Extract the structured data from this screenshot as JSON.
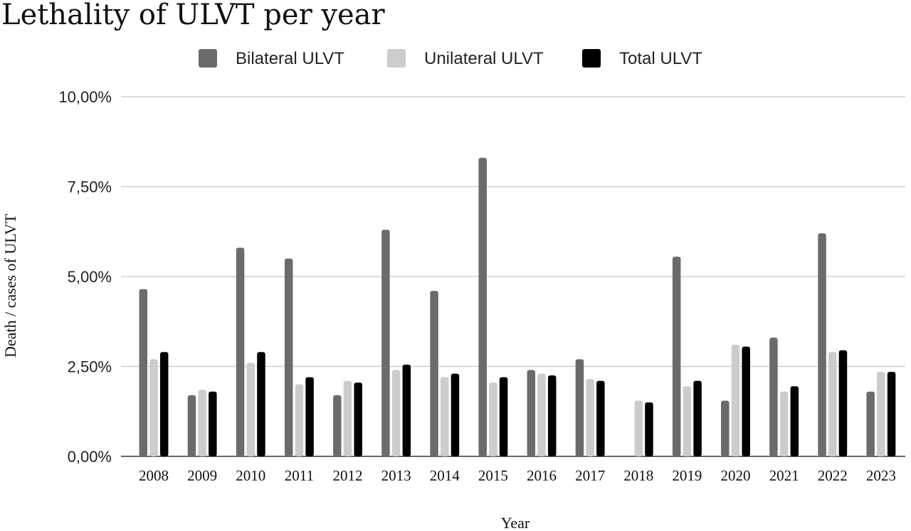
{
  "chart_data": {
    "type": "bar",
    "title": "Lethality of ULVT per year",
    "xlabel": "Year",
    "ylabel": "Death / cases of ULVT",
    "ylim": [
      0,
      10
    ],
    "yticks": [
      "0,00%",
      "2,50%",
      "5,00%",
      "7,50%",
      "10,00%"
    ],
    "ytick_values": [
      0,
      2.5,
      5,
      7.5,
      10
    ],
    "grid": true,
    "legend_position": "top-center",
    "categories": [
      "2008",
      "2009",
      "2010",
      "2011",
      "2012",
      "2013",
      "2014",
      "2015",
      "2016",
      "2017",
      "2018",
      "2019",
      "2020",
      "2021",
      "2022",
      "2023"
    ],
    "series": [
      {
        "name": "Bilateral ULVT",
        "color": "#6b6b6b",
        "values": [
          4.65,
          1.7,
          5.8,
          5.5,
          1.7,
          6.3,
          4.6,
          8.3,
          2.4,
          2.7,
          0,
          5.55,
          1.55,
          3.3,
          6.2,
          1.8
        ]
      },
      {
        "name": "Unilateral ULVT",
        "color": "#cccccc",
        "values": [
          2.7,
          1.85,
          2.6,
          2.0,
          2.1,
          2.4,
          2.2,
          2.05,
          2.3,
          2.15,
          1.55,
          1.95,
          3.1,
          1.8,
          2.9,
          2.35
        ]
      },
      {
        "name": "Total ULVT",
        "color": "#000000",
        "values": [
          2.9,
          1.8,
          2.9,
          2.2,
          2.05,
          2.55,
          2.3,
          2.2,
          2.25,
          2.1,
          1.5,
          2.1,
          3.05,
          1.95,
          2.95,
          2.35
        ]
      }
    ]
  }
}
